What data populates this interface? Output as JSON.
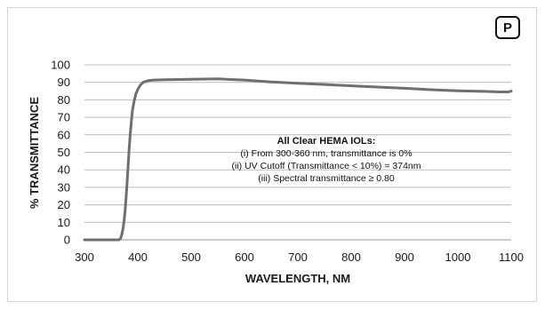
{
  "badge": "P",
  "chart_data": {
    "type": "line",
    "title": "",
    "xlabel": "WAVELENGTH, NM",
    "ylabel": "% TRANSMITTANCE",
    "xlim": [
      300,
      1100
    ],
    "ylim": [
      0,
      100
    ],
    "xticks": [
      300,
      400,
      500,
      600,
      700,
      800,
      900,
      1000,
      1100
    ],
    "yticks": [
      0,
      10,
      20,
      30,
      40,
      50,
      60,
      70,
      80,
      90,
      100
    ],
    "grid": true,
    "legend": "none",
    "colors": {
      "line": "#6f6f6f",
      "grid": "#bdbdbd",
      "axis": "#9a9a9a"
    },
    "series": [
      {
        "x": [
          300,
          350,
          365,
          368,
          370,
          372,
          374,
          376,
          378,
          380,
          382,
          384,
          386,
          388,
          390,
          393,
          396,
          400,
          405,
          410,
          420,
          430,
          450,
          500,
          550,
          600,
          650,
          700,
          750,
          800,
          850,
          900,
          950,
          1000,
          1050,
          1080,
          1095,
          1100
        ],
        "y": [
          0,
          0,
          0,
          1,
          3,
          6,
          10,
          16,
          24,
          33,
          43,
          53,
          61,
          68,
          74,
          79,
          83,
          86,
          88.5,
          90,
          91,
          91.3,
          91.5,
          91.8,
          92,
          91.3,
          90.2,
          89.5,
          88.8,
          88,
          87.3,
          86.6,
          85.8,
          85.2,
          84.8,
          84.5,
          84.5,
          85
        ]
      }
    ],
    "annotation": {
      "title": "All Clear HEMA IOLs:",
      "lines": [
        "(i) From 300-360 nm, transmittance is 0%",
        "(ii) UV Cutoff (Transmittance < 10%) = 374nm",
        "(iii) Spectral transmittance ≥ 0.80"
      ]
    }
  }
}
